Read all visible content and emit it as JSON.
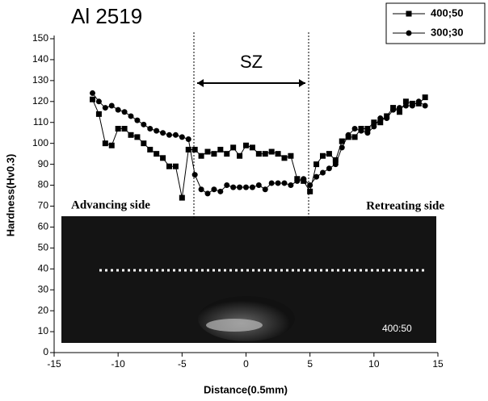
{
  "chart_data": {
    "type": "line",
    "title": "Al 2519",
    "x_label": "Distance(0.5mm)",
    "y_label": "Hardness(Hv0.3)",
    "annotations": {
      "zone": "SZ",
      "left": "Advancing side",
      "right": "Retreating side",
      "inset": "400:50"
    },
    "x": [
      -12,
      -11.5,
      -11,
      -10.5,
      -10,
      -9.5,
      -9,
      -8.5,
      -8,
      -7.5,
      -7,
      -6.5,
      -6,
      -5.5,
      -5,
      -4.5,
      -4,
      -3.5,
      -3,
      -2.5,
      -2,
      -1.5,
      -1,
      -0.5,
      0,
      0.5,
      1,
      1.5,
      2,
      2.5,
      3,
      3.5,
      4,
      4.5,
      5,
      5.5,
      6,
      6.5,
      7,
      7.5,
      8,
      8.5,
      9,
      9.5,
      10,
      10.5,
      11,
      11.5,
      12,
      12.5,
      13,
      13.5,
      14
    ],
    "series": [
      {
        "name": "400;50",
        "color": "#000000",
        "marker": "square",
        "values": [
          121,
          114,
          100,
          99,
          107,
          107,
          104,
          103,
          100,
          97,
          95,
          93,
          89,
          89,
          74,
          97,
          97,
          94,
          96,
          95,
          97,
          95,
          98,
          94,
          99,
          98,
          95,
          95,
          96,
          95,
          93,
          94,
          83,
          82,
          77,
          90,
          94,
          95,
          92,
          101,
          103,
          103,
          107,
          107,
          110,
          110,
          113,
          117,
          115,
          120,
          119,
          119,
          122
        ]
      },
      {
        "name": "300;30",
        "color": "#000000",
        "marker": "circle",
        "values": [
          124,
          120,
          117,
          118,
          116,
          115,
          113,
          111,
          109,
          107,
          106,
          105,
          104,
          104,
          103,
          102,
          85,
          78,
          76,
          78,
          77,
          80,
          79,
          79,
          79,
          79,
          80,
          78,
          81,
          81,
          81,
          80,
          82,
          83,
          80,
          84,
          86,
          88,
          90,
          98,
          104,
          107,
          106,
          105,
          108,
          112,
          112,
          116,
          117,
          118,
          118,
          120,
          118
        ]
      }
    ],
    "xlim": [
      -15,
      15
    ],
    "xticks": [
      -15,
      -10,
      -5,
      0,
      5,
      10,
      15
    ],
    "ylim": [
      0,
      150
    ],
    "yticks": [
      0,
      10,
      20,
      30,
      40,
      50,
      60,
      70,
      80,
      90,
      100,
      110,
      120,
      130,
      140,
      150
    ],
    "legend": "top-right"
  }
}
